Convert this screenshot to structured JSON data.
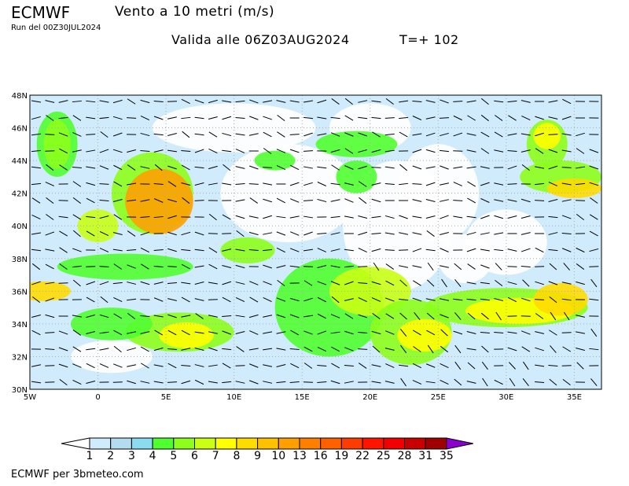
{
  "header": {
    "brand": "ECMWF",
    "title": "Vento a 10 metri (m/s)",
    "run": "Run del 00Z30JUL2024",
    "valid": "Valida alle 06Z03AUG2024",
    "timestep": "T=+ 102"
  },
  "map": {
    "lat_labels": [
      "30N",
      "32N",
      "34N",
      "36N",
      "38N",
      "40N",
      "42N",
      "44N",
      "46N",
      "48N"
    ],
    "lat_values": [
      30,
      32,
      34,
      36,
      38,
      40,
      42,
      44,
      46,
      48
    ],
    "lon_labels": [
      "5W",
      "0",
      "5E",
      "10E",
      "15E",
      "20E",
      "25E",
      "30E",
      "35E"
    ],
    "lon_values": [
      -5,
      0,
      5,
      10,
      15,
      20,
      25,
      30,
      35
    ],
    "lon_range": [
      -5,
      37
    ],
    "lat_range": [
      30,
      48
    ],
    "background_color": "#d0ecfc"
  },
  "colorbar": {
    "labels": [
      "1",
      "2",
      "3",
      "4",
      "5",
      "6",
      "7",
      "8",
      "9",
      "10",
      "13",
      "16",
      "19",
      "22",
      "25",
      "28",
      "31",
      "35"
    ],
    "colors": [
      "#d0ecfc",
      "#b4dcf0",
      "#8cdcf0",
      "#50ff30",
      "#8cff1c",
      "#c8ff14",
      "#ffff00",
      "#ffdc00",
      "#ffc000",
      "#ffa000",
      "#ff8000",
      "#ff6000",
      "#ff3c00",
      "#ff1400",
      "#f00000",
      "#c80000",
      "#a00000"
    ],
    "below_color": "#ffffff",
    "above_color": "#8c00d0"
  },
  "footer": "ECMWF per 3bmeteo.com"
}
